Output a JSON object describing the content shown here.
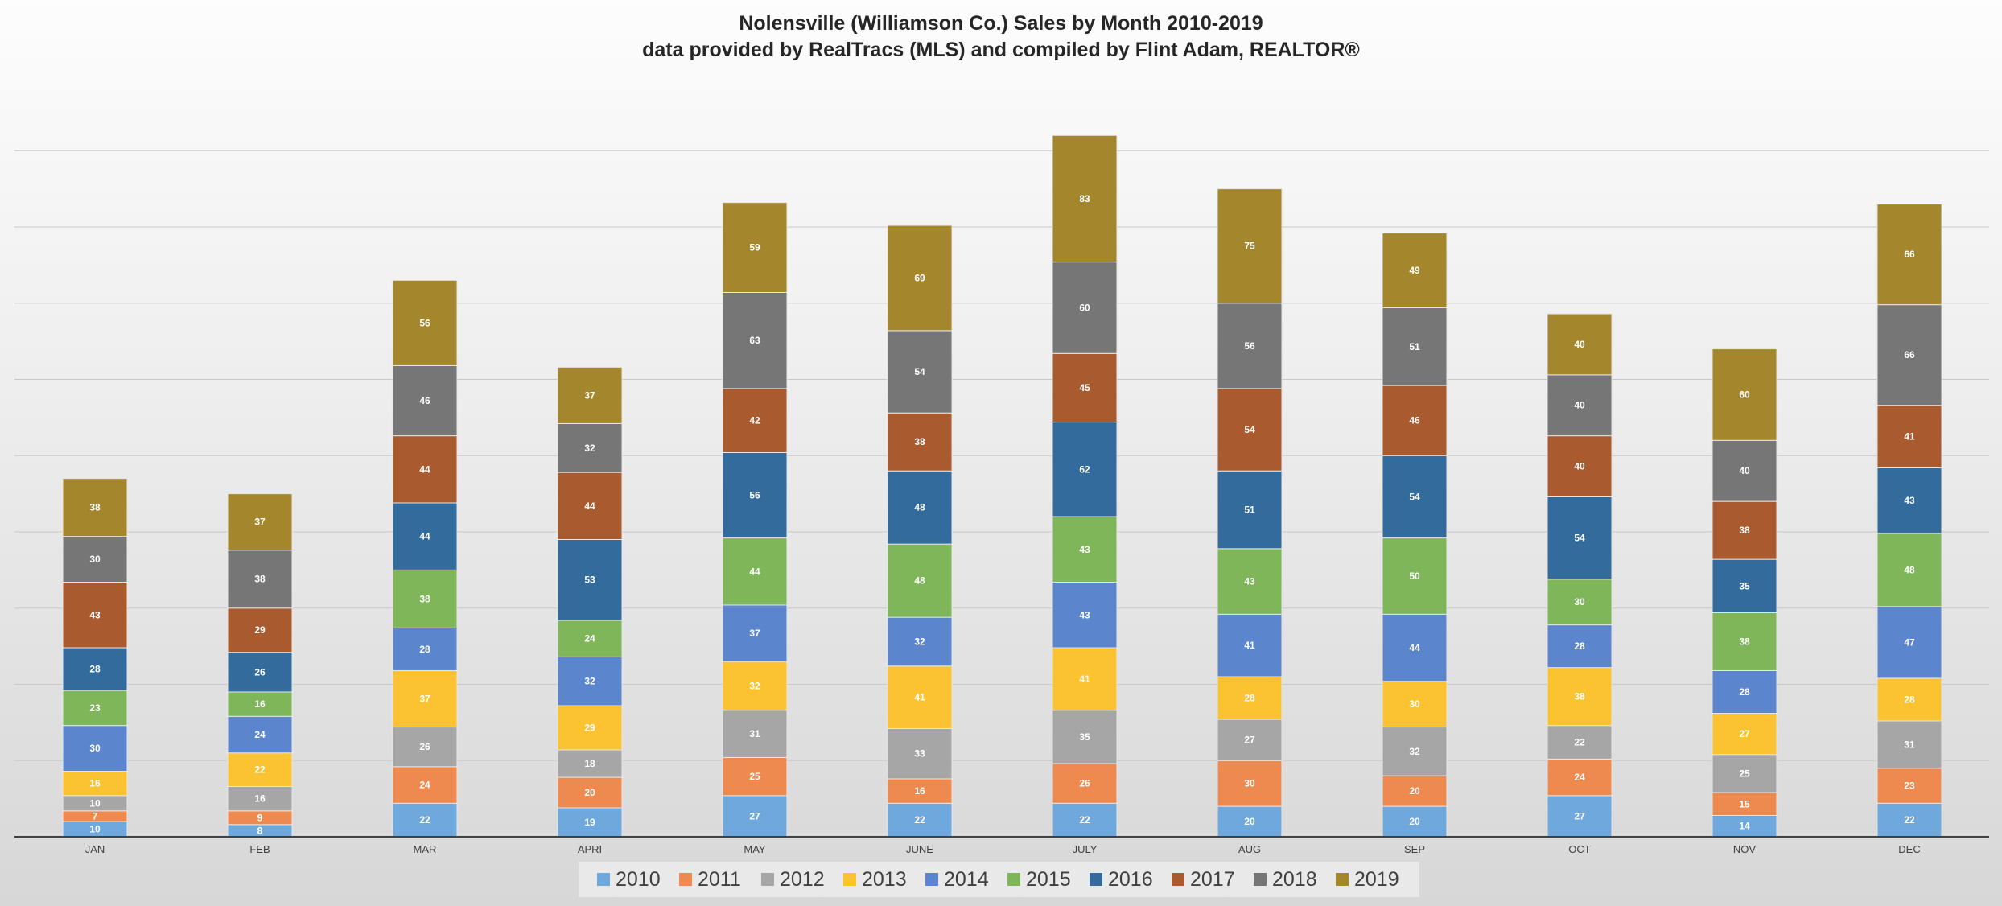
{
  "chart_data": {
    "type": "bar",
    "stacked": true,
    "title": "Nolensville (Williamson Co.) Sales by Month 2010-2019",
    "subtitle": "data provided by RealTracs (MLS) and compiled by Flint Adam, REALTOR®",
    "xlabel": "",
    "ylabel": "",
    "categories": [
      "JAN",
      "FEB",
      "MAR",
      "APRI",
      "MAY",
      "JUNE",
      "JULY",
      "AUG",
      "SEP",
      "OCT",
      "NOV",
      "DEC"
    ],
    "ylim": [
      0,
      460
    ],
    "grid": true,
    "legend_position": "bottom",
    "series": [
      {
        "name": "2010",
        "color": "#6fa8dc",
        "values": [
          10,
          8,
          22,
          19,
          27,
          22,
          22,
          20,
          20,
          27,
          14,
          22
        ]
      },
      {
        "name": "2011",
        "color": "#ee8a50",
        "values": [
          7,
          9,
          24,
          20,
          25,
          16,
          26,
          30,
          20,
          24,
          15,
          23
        ]
      },
      {
        "name": "2012",
        "color": "#a6a6a6",
        "values": [
          10,
          16,
          26,
          18,
          31,
          33,
          35,
          27,
          32,
          22,
          25,
          31
        ]
      },
      {
        "name": "2013",
        "color": "#fbc331",
        "values": [
          16,
          22,
          37,
          29,
          32,
          41,
          41,
          28,
          30,
          38,
          27,
          28
        ]
      },
      {
        "name": "2014",
        "color": "#5b85cc",
        "values": [
          30,
          24,
          28,
          32,
          37,
          32,
          43,
          41,
          44,
          28,
          28,
          47
        ]
      },
      {
        "name": "2015",
        "color": "#7fb65a",
        "values": [
          23,
          16,
          38,
          24,
          44,
          48,
          43,
          43,
          50,
          30,
          38,
          48
        ]
      },
      {
        "name": "2016",
        "color": "#336b9c",
        "values": [
          28,
          26,
          44,
          53,
          56,
          48,
          62,
          51,
          54,
          54,
          35,
          43
        ]
      },
      {
        "name": "2017",
        "color": "#a95a2e",
        "values": [
          43,
          29,
          44,
          44,
          42,
          38,
          45,
          54,
          46,
          40,
          38,
          41
        ]
      },
      {
        "name": "2018",
        "color": "#767676",
        "values": [
          30,
          38,
          46,
          32,
          63,
          54,
          60,
          56,
          51,
          40,
          40,
          66
        ]
      },
      {
        "name": "2019",
        "color": "#a4862d",
        "values": [
          38,
          37,
          56,
          37,
          59,
          69,
          83,
          75,
          49,
          40,
          60,
          66
        ]
      }
    ]
  }
}
